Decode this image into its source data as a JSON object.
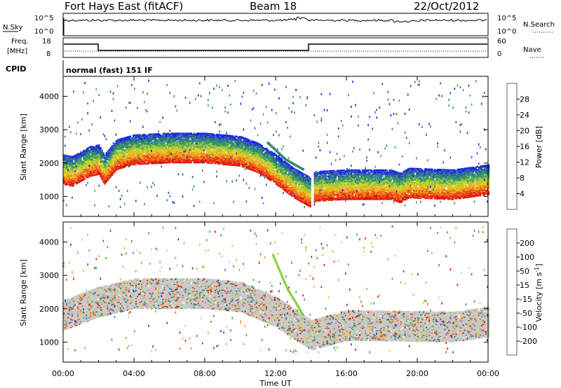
{
  "header": {
    "site": "Fort Hays East (fitACF)",
    "beam": "Beam 18",
    "date": "22/Oct/2012"
  },
  "top_panels": {
    "nsky_label": "N.Sky",
    "nsky_ticks": [
      "10^5",
      "10^0"
    ],
    "nsearch_label": "N.Search",
    "nsearch_ticks": [
      "10^5",
      "10^0"
    ],
    "freq_label": [
      "Freq.",
      "[MHz]"
    ],
    "freq_ticks": [
      "18",
      "8"
    ],
    "nave_label": "Nave",
    "nave_ticks": [
      "60",
      "0"
    ],
    "cpid_label": "CPID",
    "cpid_text": "normal (fast) 151 IF"
  },
  "chart_data": [
    {
      "type": "heatmap",
      "quantity": "power",
      "ylabel": "Slant Range [km]",
      "ytick_labels": [
        "1000",
        "2000",
        "3000",
        "4000"
      ],
      "ylim": [
        400,
        4600
      ],
      "xlim_hours": [
        0,
        24
      ],
      "colorbar": {
        "label": "Power [dB]",
        "ticks": [
          "4",
          "8",
          "12",
          "16",
          "20",
          "24",
          "28"
        ],
        "range": [
          0,
          32
        ],
        "colors": [
          "#1a1aff",
          "#2a4fb0",
          "#2f7f86",
          "#3a9a5a",
          "#8bc540",
          "#d6d22a",
          "#f0b020",
          "#f07a18",
          "#e83a10",
          "#e01010"
        ]
      },
      "features": {
        "main_echo_band": [
          [
            0.0,
            1600
          ],
          [
            0.5,
            1550
          ],
          [
            1.0,
            1700
          ],
          [
            1.5,
            1850
          ],
          [
            2.0,
            1900
          ],
          [
            2.3,
            1600
          ],
          [
            3.0,
            2050
          ],
          [
            4.0,
            2200
          ],
          [
            6.0,
            2250
          ],
          [
            8.0,
            2250
          ],
          [
            10.0,
            2150
          ],
          [
            11.0,
            1950
          ],
          [
            12.0,
            1600
          ],
          [
            13.0,
            1200
          ],
          [
            14.0,
            900
          ],
          [
            14.2,
            1100
          ],
          [
            16.0,
            1150
          ],
          [
            18.5,
            1150
          ],
          [
            19.0,
            1050
          ],
          [
            19.5,
            1200
          ],
          [
            22.0,
            1150
          ],
          [
            24.0,
            1300
          ]
        ],
        "diagonal_streak": [
          [
            11.5,
            2600
          ],
          [
            12.5,
            2100
          ],
          [
            13.5,
            1800
          ]
        ]
      }
    },
    {
      "type": "heatmap",
      "quantity": "velocity",
      "ylabel": "Slant Range [km]",
      "ytick_labels": [
        "1000",
        "2000",
        "3000",
        "4000"
      ],
      "ylim": [
        400,
        4600
      ],
      "xlim_hours": [
        0,
        24
      ],
      "colorbar": {
        "label": "Velocity [m s^-1]",
        "ticks": [
          "200",
          "100",
          "50",
          "15",
          "-15",
          "-50",
          "-100",
          "-200"
        ],
        "colors": [
          "#2a3aa0",
          "#2f7f86",
          "#3aa050",
          "#8dd048",
          "#c8c8c8",
          "#f0c020",
          "#f08a18",
          "#f05010",
          "#e81010"
        ]
      },
      "features": {
        "main_echo_band": [
          [
            0.0,
            1600
          ],
          [
            2.0,
            2000
          ],
          [
            4.0,
            2250
          ],
          [
            8.0,
            2250
          ],
          [
            10.0,
            2150
          ],
          [
            12.0,
            1700
          ],
          [
            14.0,
            1000
          ],
          [
            16.0,
            1300
          ],
          [
            22.0,
            1250
          ],
          [
            24.0,
            1400
          ]
        ],
        "diagonal_streak": [
          [
            11.8,
            3600
          ],
          [
            12.6,
            2600
          ],
          [
            13.5,
            1800
          ]
        ]
      }
    }
  ],
  "xaxis": {
    "tick_labels": [
      "00:00",
      "04:00",
      "08:00",
      "12:00",
      "16:00",
      "20:00",
      "00:00"
    ],
    "label": "Time UT"
  }
}
